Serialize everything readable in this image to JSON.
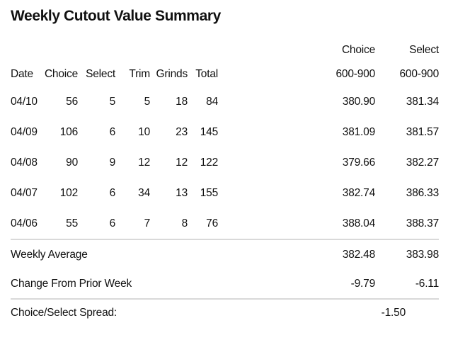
{
  "title": "Weekly Cutout Value Summary",
  "header": {
    "top": {
      "choice_group": "Choice",
      "select_group": "Select"
    },
    "bottom": {
      "date": "Date",
      "choice": "Choice",
      "select": "Select",
      "trim": "Trim",
      "grinds": "Grinds",
      "total": "Total",
      "choice_range": "600-900",
      "select_range": "600-900"
    }
  },
  "rows": [
    {
      "date": "04/10",
      "choice": "56",
      "select": "5",
      "trim": "5",
      "grinds": "18",
      "total": "84",
      "choice_600": "380.90",
      "select_600": "381.34"
    },
    {
      "date": "04/09",
      "choice": "106",
      "select": "6",
      "trim": "10",
      "grinds": "23",
      "total": "145",
      "choice_600": "381.09",
      "select_600": "381.57"
    },
    {
      "date": "04/08",
      "choice": "90",
      "select": "9",
      "trim": "12",
      "grinds": "12",
      "total": "122",
      "choice_600": "379.66",
      "select_600": "382.27"
    },
    {
      "date": "04/07",
      "choice": "102",
      "select": "6",
      "trim": "34",
      "grinds": "13",
      "total": "155",
      "choice_600": "382.74",
      "select_600": "386.33"
    },
    {
      "date": "04/06",
      "choice": "55",
      "select": "6",
      "trim": "7",
      "grinds": "8",
      "total": "76",
      "choice_600": "388.04",
      "select_600": "388.37"
    }
  ],
  "summary": [
    {
      "label": "Weekly Average",
      "choice_600": "382.48",
      "select_600": "383.98"
    },
    {
      "label": "Change From Prior Week",
      "choice_600": "-9.79",
      "select_600": "-6.11"
    }
  ],
  "spread": {
    "label": "Choice/Select Spread:",
    "value": "-1.50"
  },
  "colors": {
    "text": "#111111",
    "rule": "#d9d9d9",
    "background": "#ffffff"
  },
  "chart_data": {
    "type": "table",
    "title": "Weekly Cutout Value Summary",
    "columns": [
      "Date",
      "Choice",
      "Select",
      "Trim",
      "Grinds",
      "Total",
      "Choice 600-900",
      "Select 600-900"
    ],
    "rows": [
      [
        "04/10",
        56,
        5,
        5,
        18,
        84,
        380.9,
        381.34
      ],
      [
        "04/09",
        106,
        6,
        10,
        23,
        145,
        381.09,
        381.57
      ],
      [
        "04/08",
        90,
        9,
        12,
        12,
        122,
        379.66,
        382.27
      ],
      [
        "04/07",
        102,
        6,
        34,
        13,
        155,
        382.74,
        386.33
      ],
      [
        "04/06",
        55,
        6,
        7,
        8,
        76,
        388.04,
        388.37
      ]
    ],
    "summary_rows": [
      {
        "label": "Weekly Average",
        "choice_600_900": 382.48,
        "select_600_900": 383.98
      },
      {
        "label": "Change From Prior Week",
        "choice_600_900": -9.79,
        "select_600_900": -6.11
      }
    ],
    "footer": {
      "label": "Choice/Select Spread:",
      "value": -1.5
    },
    "layout_hints": {
      "grid": "off",
      "separators": "light-gray horizontal rules after data rows and after change row"
    }
  }
}
